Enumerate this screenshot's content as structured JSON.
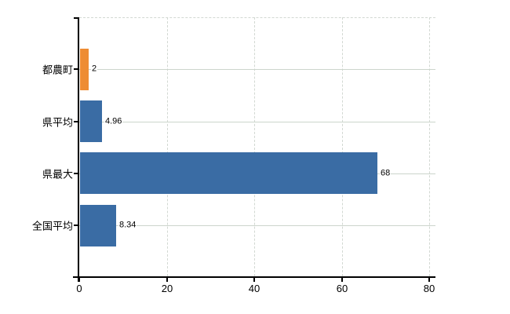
{
  "chart_data": {
    "type": "bar",
    "orientation": "horizontal",
    "title": "",
    "xlabel": "",
    "ylabel": "",
    "categories": [
      "都農町",
      "県平均",
      "県最大",
      "全国平均"
    ],
    "values": [
      2,
      4.96,
      68,
      8.34
    ],
    "value_labels": [
      "2",
      "4.96",
      "68",
      "8.34"
    ],
    "series": [
      {
        "name": "",
        "values": [
          2,
          4.96,
          68,
          8.34
        ],
        "bar_colors": [
          "#ee8c33",
          "#3a6ca4",
          "#3a6ca4",
          "#3a6ca4"
        ]
      }
    ],
    "xlim": [
      0,
      81.4
    ],
    "xticks": [
      0,
      20,
      40,
      60,
      80
    ],
    "xtick_labels": [
      "0",
      "20",
      "40",
      "60",
      "80"
    ],
    "grid": true,
    "legend": false,
    "colors": {
      "highlight_bar": "#ee8c33",
      "default_bar": "#3a6ca4",
      "h_gridline": "#ccd5cc",
      "v_gridline": "#d2d8d2",
      "axis": "#000000",
      "text": "#000000",
      "background": "#ffffff"
    }
  }
}
